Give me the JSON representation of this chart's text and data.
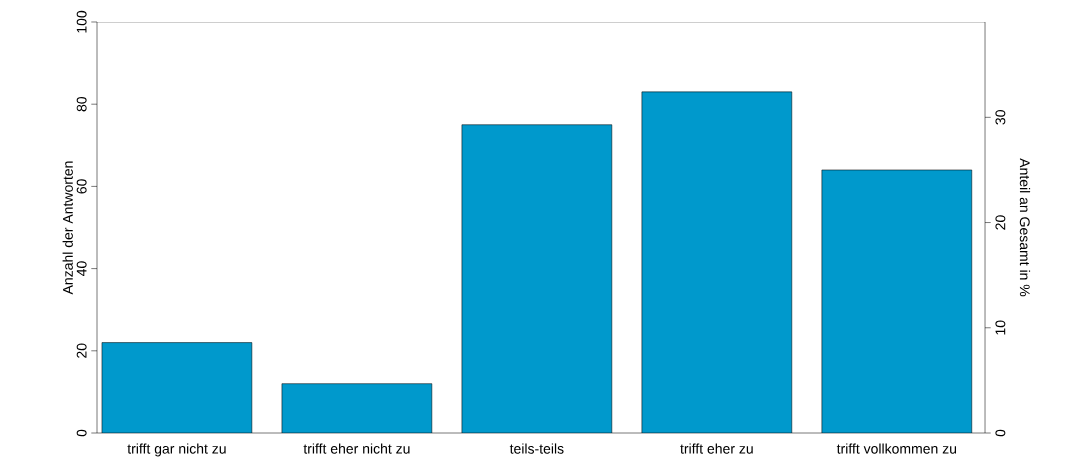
{
  "chart_data": {
    "type": "bar",
    "categories": [
      "trifft gar nicht zu",
      "trifft eher nicht zu",
      "teils-teils",
      "trifft eher zu",
      "trifft vollkommen zu"
    ],
    "values": [
      22,
      12,
      75,
      83,
      64
    ],
    "color": "#0099cc",
    "ylabel": "Anzahl der Antworten",
    "y2label": "Anteil an Gesamt in %",
    "ylim": [
      0,
      100
    ],
    "yticks": [
      0,
      20,
      40,
      60,
      80,
      100
    ],
    "y2lim": [
      0,
      39.06
    ],
    "y2ticks": [
      0,
      10,
      20,
      30
    ]
  }
}
